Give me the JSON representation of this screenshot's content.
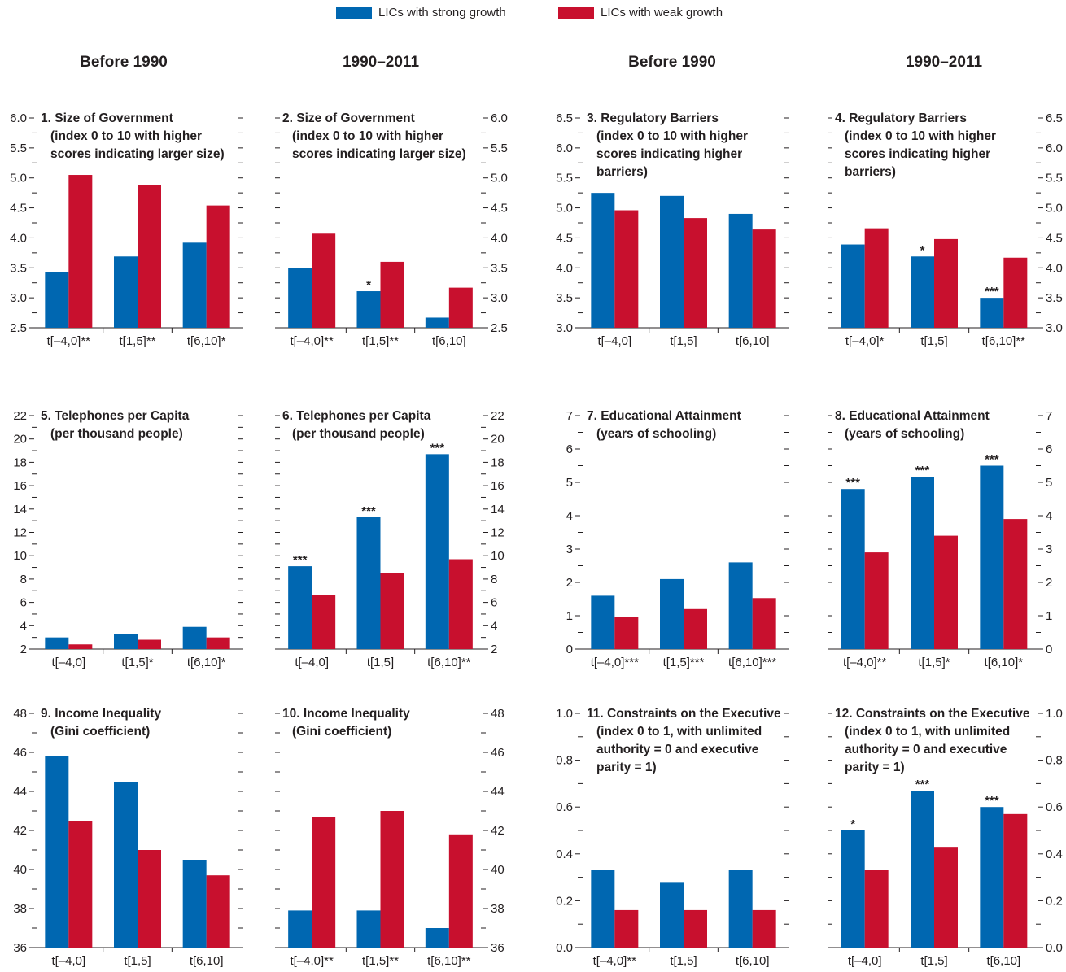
{
  "legend": [
    {
      "label": "LICs with strong growth",
      "color": "#0067b1"
    },
    {
      "label": "LICs with weak growth",
      "color": "#c8102e"
    }
  ],
  "column_headers": [
    "Before 1990",
    "1990–2011",
    "Before 1990",
    "1990–2011"
  ],
  "colors": {
    "strong": "#0067b1",
    "weak": "#c8102e",
    "axis": "#231f20"
  },
  "chart_data": [
    {
      "type": "bar",
      "title": [
        "1. Size of Government",
        "(index 0 to 10 with higher",
        "scores indicating larger size)"
      ],
      "categories": [
        "t[–4,0]**",
        "t[1,5]**",
        "t[6,10]*"
      ],
      "series": [
        {
          "name": "LICs with strong growth",
          "values": [
            3.43,
            3.69,
            3.92
          ]
        },
        {
          "name": "LICs with weak growth",
          "values": [
            5.05,
            4.88,
            4.54
          ]
        }
      ],
      "stars": [
        [
          "",
          ""
        ],
        [
          "",
          ""
        ],
        [
          "",
          ""
        ]
      ],
      "ylim": [
        2.5,
        6.0
      ],
      "ticks": [
        2.5,
        3.0,
        3.5,
        4.0,
        4.5,
        5.0,
        5.5,
        6.0
      ],
      "tick_labels": [
        "2.5",
        "3.0",
        "3.5",
        "4.0",
        "4.5",
        "5.0",
        "5.5",
        "6.0"
      ],
      "axis_side": "left"
    },
    {
      "type": "bar",
      "title": [
        "2. Size of Government",
        "(index 0 to 10 with higher",
        "scores indicating larger size)"
      ],
      "categories": [
        "t[–4,0]**",
        "t[1,5]**",
        "t[6,10]"
      ],
      "series": [
        {
          "name": "LICs with strong growth",
          "values": [
            3.5,
            3.11,
            2.67
          ]
        },
        {
          "name": "LICs with weak growth",
          "values": [
            4.07,
            3.6,
            3.17
          ]
        }
      ],
      "stars": [
        [
          "",
          ""
        ],
        [
          "*",
          ""
        ],
        [
          "",
          ""
        ]
      ],
      "ylim": [
        2.5,
        6.0
      ],
      "ticks": [
        2.5,
        3.0,
        3.5,
        4.0,
        4.5,
        5.0,
        5.5,
        6.0
      ],
      "tick_labels": [
        "2.5",
        "3.0",
        "3.5",
        "4.0",
        "4.5",
        "5.0",
        "5.5",
        "6.0"
      ],
      "axis_side": "right"
    },
    {
      "type": "bar",
      "title": [
        "3. Regulatory Barriers",
        "(index 0 to 10 with higher",
        "scores indicating higher",
        "barriers)"
      ],
      "categories": [
        "t[–4,0]",
        "t[1,5]",
        "t[6,10]"
      ],
      "series": [
        {
          "name": "LICs with strong growth",
          "values": [
            5.25,
            5.2,
            4.9
          ]
        },
        {
          "name": "LICs with weak growth",
          "values": [
            4.96,
            4.83,
            4.64
          ]
        }
      ],
      "stars": [
        [
          "",
          ""
        ],
        [
          "",
          ""
        ],
        [
          "",
          ""
        ]
      ],
      "ylim": [
        3.0,
        6.5
      ],
      "ticks": [
        3.0,
        3.5,
        4.0,
        4.5,
        5.0,
        5.5,
        6.0,
        6.5
      ],
      "tick_labels": [
        "3.0",
        "3.5",
        "4.0",
        "4.5",
        "5.0",
        "5.5",
        "6.0",
        "6.5"
      ],
      "axis_side": "left"
    },
    {
      "type": "bar",
      "title": [
        "4. Regulatory Barriers",
        "(index 0 to 10 with higher",
        "scores indicating higher",
        "barriers)"
      ],
      "categories": [
        "t[–4,0]*",
        "t[1,5]",
        "t[6,10]**"
      ],
      "series": [
        {
          "name": "LICs with strong growth",
          "values": [
            4.39,
            4.19,
            3.5
          ]
        },
        {
          "name": "LICs with weak growth",
          "values": [
            4.66,
            4.48,
            4.17
          ]
        }
      ],
      "stars": [
        [
          "",
          ""
        ],
        [
          "*",
          ""
        ],
        [
          "***",
          ""
        ]
      ],
      "ylim": [
        3.0,
        6.5
      ],
      "ticks": [
        3.0,
        3.5,
        4.0,
        4.5,
        5.0,
        5.5,
        6.0,
        6.5
      ],
      "tick_labels": [
        "3.0",
        "3.5",
        "4.0",
        "4.5",
        "5.0",
        "5.5",
        "6.0",
        "6.5"
      ],
      "axis_side": "right"
    },
    {
      "type": "bar",
      "title": [
        "5. Telephones per Capita",
        "(per thousand people)"
      ],
      "categories": [
        "t[–4,0]",
        "t[1,5]*",
        "t[6,10]*"
      ],
      "series": [
        {
          "name": "LICs with strong growth",
          "values": [
            3.0,
            3.3,
            3.9
          ]
        },
        {
          "name": "LICs with weak growth",
          "values": [
            2.4,
            2.8,
            3.0
          ]
        }
      ],
      "stars": [
        [
          "",
          ""
        ],
        [
          "",
          ""
        ],
        [
          "",
          ""
        ]
      ],
      "ylim": [
        2,
        22
      ],
      "ticks": [
        2,
        4,
        6,
        8,
        10,
        12,
        14,
        16,
        18,
        20,
        22
      ],
      "tick_labels": [
        "2",
        "4",
        "6",
        "8",
        "10",
        "12",
        "14",
        "16",
        "18",
        "20",
        "22"
      ],
      "axis_side": "left"
    },
    {
      "type": "bar",
      "title": [
        "6. Telephones per Capita",
        "(per thousand people)"
      ],
      "categories": [
        "t[–4,0]",
        "t[1,5]",
        "t[6,10]**"
      ],
      "series": [
        {
          "name": "LICs with strong growth",
          "values": [
            9.1,
            13.3,
            18.7
          ]
        },
        {
          "name": "LICs with weak growth",
          "values": [
            6.6,
            8.5,
            9.7
          ]
        }
      ],
      "stars": [
        [
          "***",
          ""
        ],
        [
          "***",
          ""
        ],
        [
          "***",
          ""
        ]
      ],
      "ylim": [
        2,
        22
      ],
      "ticks": [
        2,
        4,
        6,
        8,
        10,
        12,
        14,
        16,
        18,
        20,
        22
      ],
      "tick_labels": [
        "2",
        "4",
        "6",
        "8",
        "10",
        "12",
        "14",
        "16",
        "18",
        "20",
        "22"
      ],
      "axis_side": "right"
    },
    {
      "type": "bar",
      "title": [
        "7. Educational Attainment",
        "(years of schooling)"
      ],
      "categories": [
        "t[–4,0]***",
        "t[1,5]***",
        "t[6,10]***"
      ],
      "series": [
        {
          "name": "LICs with strong growth",
          "values": [
            1.6,
            2.1,
            2.6
          ]
        },
        {
          "name": "LICs with weak growth",
          "values": [
            0.97,
            1.2,
            1.53
          ]
        }
      ],
      "stars": [
        [
          "",
          ""
        ],
        [
          "",
          ""
        ],
        [
          "",
          ""
        ]
      ],
      "ylim": [
        0,
        7
      ],
      "ticks": [
        0,
        1,
        2,
        3,
        4,
        5,
        6,
        7
      ],
      "tick_labels": [
        "0",
        "1",
        "2",
        "3",
        "4",
        "5",
        "6",
        "7"
      ],
      "axis_side": "left"
    },
    {
      "type": "bar",
      "title": [
        "8. Educational Attainment",
        "(years of schooling)"
      ],
      "categories": [
        "t[–4,0]**",
        "t[1,5]*",
        "t[6,10]*"
      ],
      "series": [
        {
          "name": "LICs with strong growth",
          "values": [
            4.8,
            5.17,
            5.5
          ]
        },
        {
          "name": "LICs with weak growth",
          "values": [
            2.9,
            3.4,
            3.9
          ]
        }
      ],
      "stars": [
        [
          "***",
          ""
        ],
        [
          "***",
          ""
        ],
        [
          "***",
          ""
        ]
      ],
      "ylim": [
        0,
        7
      ],
      "ticks": [
        0,
        1,
        2,
        3,
        4,
        5,
        6,
        7
      ],
      "tick_labels": [
        "0",
        "1",
        "2",
        "3",
        "4",
        "5",
        "6",
        "7"
      ],
      "axis_side": "right"
    },
    {
      "type": "bar",
      "title": [
        "9. Income Inequality",
        "(Gini coefficient)"
      ],
      "categories": [
        "t[–4,0]",
        "t[1,5]",
        "t[6,10]"
      ],
      "series": [
        {
          "name": "LICs with strong growth",
          "values": [
            45.8,
            44.5,
            40.5
          ]
        },
        {
          "name": "LICs with weak growth",
          "values": [
            42.5,
            41.0,
            39.7
          ]
        }
      ],
      "stars": [
        [
          "",
          ""
        ],
        [
          "",
          ""
        ],
        [
          "",
          ""
        ]
      ],
      "ylim": [
        36,
        48
      ],
      "ticks": [
        36,
        38,
        40,
        42,
        44,
        46,
        48
      ],
      "tick_labels": [
        "36",
        "38",
        "40",
        "42",
        "44",
        "46",
        "48"
      ],
      "axis_side": "left"
    },
    {
      "type": "bar",
      "title": [
        "10. Income Inequality",
        "(Gini coefficient)"
      ],
      "categories": [
        "t[–4,0]**",
        "t[1,5]**",
        "t[6,10]**"
      ],
      "series": [
        {
          "name": "LICs with strong growth",
          "values": [
            37.9,
            37.9,
            37.0
          ]
        },
        {
          "name": "LICs with weak growth",
          "values": [
            42.7,
            43.0,
            41.8
          ]
        }
      ],
      "stars": [
        [
          "",
          ""
        ],
        [
          "",
          ""
        ],
        [
          "",
          ""
        ]
      ],
      "ylim": [
        36,
        48
      ],
      "ticks": [
        36,
        38,
        40,
        42,
        44,
        46,
        48
      ],
      "tick_labels": [
        "36",
        "38",
        "40",
        "42",
        "44",
        "46",
        "48"
      ],
      "axis_side": "right"
    },
    {
      "type": "bar",
      "title": [
        "11. Constraints on the Executive",
        "(index 0 to 1, with unlimited",
        "authority = 0 and executive",
        "parity = 1)"
      ],
      "categories": [
        "t[–4,0]**",
        "t[1,5]",
        "t[6,10]"
      ],
      "series": [
        {
          "name": "LICs with strong growth",
          "values": [
            0.33,
            0.28,
            0.33
          ]
        },
        {
          "name": "LICs with weak growth",
          "values": [
            0.16,
            0.16,
            0.16
          ]
        }
      ],
      "stars": [
        [
          "",
          ""
        ],
        [
          "",
          ""
        ],
        [
          "",
          ""
        ]
      ],
      "ylim": [
        0,
        1
      ],
      "ticks": [
        0,
        0.2,
        0.4,
        0.6,
        0.8,
        1.0
      ],
      "tick_labels": [
        "0.0",
        "0.2",
        "0.4",
        "0.6",
        "0.8",
        "1.0"
      ],
      "axis_side": "left"
    },
    {
      "type": "bar",
      "title": [
        "12. Constraints on the Executive",
        "(index 0 to 1, with unlimited",
        "authority = 0 and executive",
        "parity = 1)"
      ],
      "categories": [
        "t[–4,0]",
        "t[1,5]",
        "t[6,10]"
      ],
      "series": [
        {
          "name": "LICs with strong growth",
          "values": [
            0.5,
            0.67,
            0.6
          ]
        },
        {
          "name": "LICs with weak growth",
          "values": [
            0.33,
            0.43,
            0.57
          ]
        }
      ],
      "stars": [
        [
          "*",
          ""
        ],
        [
          "***",
          ""
        ],
        [
          "***",
          ""
        ]
      ],
      "ylim": [
        0,
        1
      ],
      "ticks": [
        0,
        0.2,
        0.4,
        0.6,
        0.8,
        1.0
      ],
      "tick_labels": [
        "0.0",
        "0.2",
        "0.4",
        "0.6",
        "0.8",
        "1.0"
      ],
      "axis_side": "right"
    }
  ]
}
